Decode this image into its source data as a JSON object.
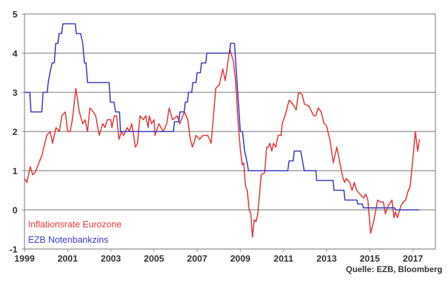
{
  "chart_data": {
    "type": "line",
    "title": "",
    "xlabel": "",
    "ylabel": "",
    "xlim": [
      1999,
      2018
    ],
    "ylim": [
      -1,
      5
    ],
    "grid": "horizontal",
    "legend_placement": "bottom-left inside",
    "x_ticks": [
      "1999",
      "2001",
      "2003",
      "2005",
      "2007",
      "2009",
      "2011",
      "2013",
      "2015",
      "2017"
    ],
    "y_ticks": [
      "-1",
      "0",
      "1",
      "2",
      "3",
      "4",
      "5"
    ],
    "source": "Quelle: EZB, Bloomberg",
    "series": [
      {
        "name": "Inflationsrate Eurozone",
        "color": "#e03a3a",
        "points": [
          [
            1999.0,
            0.8
          ],
          [
            1999.11,
            0.7
          ],
          [
            1999.27,
            1.1
          ],
          [
            1999.38,
            0.9
          ],
          [
            1999.49,
            0.95
          ],
          [
            1999.81,
            1.4
          ],
          [
            2000.03,
            1.9
          ],
          [
            2000.19,
            2.0
          ],
          [
            2000.3,
            1.7
          ],
          [
            2000.46,
            2.1
          ],
          [
            2000.62,
            2.0
          ],
          [
            2000.73,
            2.4
          ],
          [
            2000.89,
            2.5
          ],
          [
            2001.0,
            2.0
          ],
          [
            2001.11,
            2.0
          ],
          [
            2001.22,
            2.3
          ],
          [
            2001.38,
            3.1
          ],
          [
            2001.54,
            2.5
          ],
          [
            2001.7,
            2.2
          ],
          [
            2001.81,
            2.3
          ],
          [
            2001.92,
            2.0
          ],
          [
            2002.03,
            2.6
          ],
          [
            2002.19,
            2.5
          ],
          [
            2002.3,
            2.4
          ],
          [
            2002.46,
            1.9
          ],
          [
            2002.62,
            2.2
          ],
          [
            2002.73,
            2.1
          ],
          [
            2002.84,
            2.3
          ],
          [
            2003.0,
            2.3
          ],
          [
            2003.05,
            2.1
          ],
          [
            2003.16,
            2.4
          ],
          [
            2003.27,
            2.4
          ],
          [
            2003.38,
            1.8
          ],
          [
            2003.49,
            2.0
          ],
          [
            2003.59,
            1.9
          ],
          [
            2003.76,
            2.1
          ],
          [
            2003.86,
            2.0
          ],
          [
            2003.97,
            2.2
          ],
          [
            2004.14,
            1.6
          ],
          [
            2004.24,
            1.7
          ],
          [
            2004.35,
            2.4
          ],
          [
            2004.51,
            2.3
          ],
          [
            2004.62,
            2.4
          ],
          [
            2004.73,
            2.1
          ],
          [
            2004.78,
            2.4
          ],
          [
            2004.89,
            2.2
          ],
          [
            2005.0,
            2.3
          ],
          [
            2005.05,
            1.9
          ],
          [
            2005.22,
            2.2
          ],
          [
            2005.43,
            2.0
          ],
          [
            2005.59,
            2.2
          ],
          [
            2005.7,
            2.6
          ],
          [
            2005.86,
            2.3
          ],
          [
            2006.08,
            2.4
          ],
          [
            2006.19,
            2.2
          ],
          [
            2006.41,
            2.5
          ],
          [
            2006.57,
            2.3
          ],
          [
            2006.68,
            1.8
          ],
          [
            2006.78,
            1.6
          ],
          [
            2006.95,
            1.9
          ],
          [
            2007.11,
            1.8
          ],
          [
            2007.27,
            1.9
          ],
          [
            2007.49,
            1.9
          ],
          [
            2007.65,
            1.7
          ],
          [
            2007.86,
            3.1
          ],
          [
            2008.03,
            3.2
          ],
          [
            2008.19,
            3.6
          ],
          [
            2008.3,
            3.3
          ],
          [
            2008.51,
            4.1
          ],
          [
            2008.68,
            3.8
          ],
          [
            2008.78,
            3.3
          ],
          [
            2008.89,
            2.3
          ],
          [
            2009.0,
            1.55
          ],
          [
            2009.09,
            1.15
          ],
          [
            2009.16,
            1.2
          ],
          [
            2009.24,
            0.6
          ],
          [
            2009.32,
            0.5
          ],
          [
            2009.41,
            0.0
          ],
          [
            2009.49,
            -0.1
          ],
          [
            2009.56,
            -0.7
          ],
          [
            2009.65,
            -0.25
          ],
          [
            2009.73,
            -0.3
          ],
          [
            2009.81,
            -0.1
          ],
          [
            2009.97,
            0.9
          ],
          [
            2010.13,
            0.95
          ],
          [
            2010.22,
            1.6
          ],
          [
            2010.29,
            1.6
          ],
          [
            2010.37,
            1.7
          ],
          [
            2010.46,
            1.5
          ],
          [
            2010.54,
            1.7
          ],
          [
            2010.64,
            1.6
          ],
          [
            2010.75,
            1.9
          ],
          [
            2010.89,
            1.9
          ],
          [
            2010.94,
            2.2
          ],
          [
            2011.1,
            2.45
          ],
          [
            2011.26,
            2.8
          ],
          [
            2011.43,
            2.7
          ],
          [
            2011.59,
            2.55
          ],
          [
            2011.7,
            3.0
          ],
          [
            2011.86,
            2.95
          ],
          [
            2011.97,
            2.7
          ],
          [
            2012.18,
            2.65
          ],
          [
            2012.4,
            2.4
          ],
          [
            2012.5,
            2.4
          ],
          [
            2012.61,
            2.6
          ],
          [
            2012.75,
            2.5
          ],
          [
            2012.88,
            2.2
          ],
          [
            2012.99,
            2.15
          ],
          [
            2013.15,
            1.8
          ],
          [
            2013.31,
            1.2
          ],
          [
            2013.47,
            1.6
          ],
          [
            2013.58,
            1.3
          ],
          [
            2013.74,
            0.85
          ],
          [
            2013.83,
            0.7
          ],
          [
            2013.91,
            0.8
          ],
          [
            2014.07,
            0.7
          ],
          [
            2014.18,
            0.5
          ],
          [
            2014.28,
            0.7
          ],
          [
            2014.39,
            0.5
          ],
          [
            2014.55,
            0.4
          ],
          [
            2014.71,
            0.3
          ],
          [
            2014.82,
            0.4
          ],
          [
            2014.91,
            0.25
          ],
          [
            2015.04,
            -0.6
          ],
          [
            2015.2,
            -0.25
          ],
          [
            2015.36,
            0.25
          ],
          [
            2015.49,
            0.2
          ],
          [
            2015.63,
            0.2
          ],
          [
            2015.72,
            -0.1
          ],
          [
            2015.85,
            0.1
          ],
          [
            2016.03,
            0.25
          ],
          [
            2016.12,
            -0.2
          ],
          [
            2016.19,
            -0.05
          ],
          [
            2016.28,
            -0.2
          ],
          [
            2016.44,
            0.1
          ],
          [
            2016.55,
            0.2
          ],
          [
            2016.66,
            0.25
          ],
          [
            2016.76,
            0.45
          ],
          [
            2016.87,
            0.6
          ],
          [
            2016.98,
            1.2
          ],
          [
            2017.11,
            2.0
          ],
          [
            2017.22,
            1.5
          ],
          [
            2017.3,
            1.8
          ]
        ]
      },
      {
        "name": "EZB Notenbankzins",
        "color": "#3a3ac8",
        "points": [
          [
            1999.0,
            3.0
          ],
          [
            1999.25,
            3.0
          ],
          [
            1999.3,
            2.5
          ],
          [
            1999.8,
            2.5
          ],
          [
            1999.86,
            3.0
          ],
          [
            2000.05,
            3.0
          ],
          [
            2000.1,
            3.25
          ],
          [
            2000.18,
            3.5
          ],
          [
            2000.28,
            3.75
          ],
          [
            2000.38,
            3.75
          ],
          [
            2000.45,
            4.25
          ],
          [
            2000.55,
            4.25
          ],
          [
            2000.6,
            4.5
          ],
          [
            2000.72,
            4.5
          ],
          [
            2000.78,
            4.75
          ],
          [
            2001.35,
            4.75
          ],
          [
            2001.4,
            4.5
          ],
          [
            2001.6,
            4.5
          ],
          [
            2001.7,
            4.25
          ],
          [
            2001.78,
            3.75
          ],
          [
            2001.85,
            3.75
          ],
          [
            2001.92,
            3.25
          ],
          [
            2002.92,
            3.25
          ],
          [
            2002.98,
            2.75
          ],
          [
            2003.15,
            2.75
          ],
          [
            2003.22,
            2.5
          ],
          [
            2003.4,
            2.5
          ],
          [
            2003.45,
            2.0
          ],
          [
            2005.9,
            2.0
          ],
          [
            2005.95,
            2.25
          ],
          [
            2006.15,
            2.25
          ],
          [
            2006.2,
            2.5
          ],
          [
            2006.4,
            2.5
          ],
          [
            2006.45,
            2.75
          ],
          [
            2006.55,
            2.75
          ],
          [
            2006.6,
            3.0
          ],
          [
            2006.75,
            3.0
          ],
          [
            2006.8,
            3.25
          ],
          [
            2006.95,
            3.25
          ],
          [
            2007.0,
            3.5
          ],
          [
            2007.15,
            3.5
          ],
          [
            2007.2,
            3.75
          ],
          [
            2007.4,
            3.75
          ],
          [
            2007.45,
            4.0
          ],
          [
            2008.5,
            4.0
          ],
          [
            2008.55,
            4.25
          ],
          [
            2008.73,
            4.25
          ],
          [
            2008.85,
            3.25
          ],
          [
            2009.0,
            2.0
          ],
          [
            2009.1,
            2.0
          ],
          [
            2009.2,
            1.5
          ],
          [
            2009.3,
            1.25
          ],
          [
            2009.38,
            1.0
          ],
          [
            2011.2,
            1.0
          ],
          [
            2011.26,
            1.25
          ],
          [
            2011.45,
            1.25
          ],
          [
            2011.5,
            1.5
          ],
          [
            2011.8,
            1.5
          ],
          [
            2011.96,
            1.0
          ],
          [
            2012.5,
            1.0
          ],
          [
            2012.54,
            0.75
          ],
          [
            2013.3,
            0.75
          ],
          [
            2013.34,
            0.5
          ],
          [
            2013.8,
            0.5
          ],
          [
            2013.85,
            0.25
          ],
          [
            2014.4,
            0.25
          ],
          [
            2014.44,
            0.15
          ],
          [
            2014.65,
            0.15
          ],
          [
            2014.71,
            0.05
          ],
          [
            2016.15,
            0.05
          ],
          [
            2016.2,
            0.0
          ],
          [
            2017.3,
            0.0
          ]
        ]
      }
    ]
  }
}
